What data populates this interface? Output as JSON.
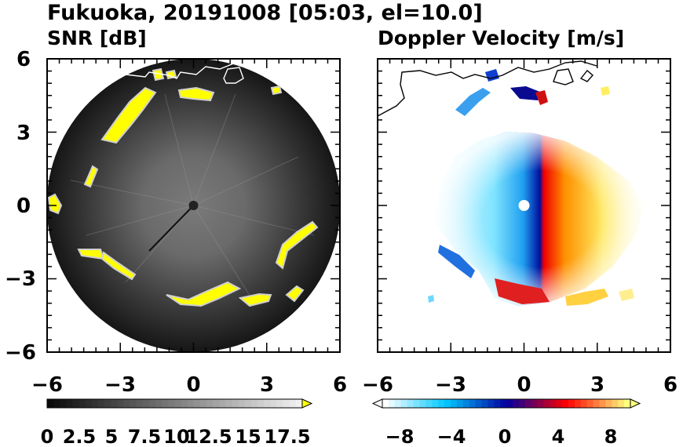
{
  "title": "Fukuoka, 20191008 [05:03, el=10.0]",
  "chart_data": [
    {
      "type": "heatmap",
      "subtitle": "SNR [dB]",
      "xlim": [
        -6,
        6
      ],
      "ylim": [
        -6,
        6
      ],
      "x_ticks": [
        "−6",
        "−3",
        "0",
        "3",
        "6"
      ],
      "y_ticks": [
        "6",
        "3",
        "0",
        "−3",
        "−6"
      ],
      "colorbar": {
        "range": [
          0,
          20
        ],
        "ticks": [
          "0",
          "2.5",
          "5",
          "7.5",
          "10",
          "12.5",
          "15",
          "17.5"
        ],
        "colors": [
          "#000000",
          "#ffff00"
        ]
      }
    },
    {
      "type": "heatmap",
      "subtitle": "Doppler Velocity [m/s]",
      "xlim": [
        -6,
        6
      ],
      "ylim": [
        -6,
        6
      ],
      "x_ticks": [
        "−6",
        "−3",
        "0",
        "3",
        "6"
      ],
      "y_ticks": [],
      "colorbar": {
        "range": [
          -10,
          10
        ],
        "ticks": [
          "−8",
          "−4",
          "0",
          "4",
          "8"
        ],
        "colors": [
          "#ffffff",
          "#00c8ff",
          "#0000a0",
          "#ff0000",
          "#ffff80"
        ]
      }
    }
  ]
}
